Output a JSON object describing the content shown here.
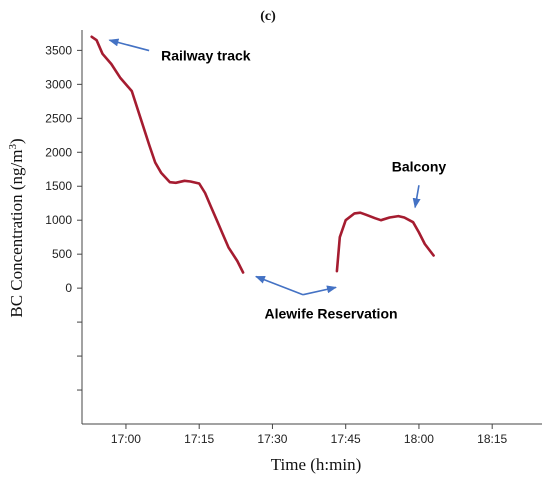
{
  "chart_data": {
    "type": "line",
    "panel_label": "(c)",
    "xlabel": "Time (h:min)",
    "ylabel": "BC Concentration (ng/m³)",
    "ylabel_parts": {
      "main": "BC Concentration (ng/m",
      "sup": "3",
      "end": ")"
    },
    "x_ticks": [
      "17:00",
      "17:15",
      "17:30",
      "17:45",
      "18:00",
      "18:15"
    ],
    "x_tick_values": [
      17.0,
      17.25,
      17.5,
      17.75,
      18.0,
      18.25
    ],
    "xlim": [
      16.85,
      18.42
    ],
    "y_ticks": [
      0,
      500,
      1000,
      1500,
      2000,
      2500,
      3000,
      3500
    ],
    "ylim": [
      -2000,
      3800
    ],
    "series": [
      {
        "color": "#a51c30",
        "x": [
          16.883,
          16.9,
          16.92,
          16.95,
          16.98,
          17.02,
          17.05,
          17.08,
          17.1,
          17.12,
          17.15,
          17.17,
          17.2,
          17.22,
          17.25,
          17.27,
          17.29,
          17.31,
          17.33,
          17.35,
          17.38,
          17.4
        ],
        "y": [
          3700,
          3650,
          3450,
          3300,
          3100,
          2900,
          2500,
          2100,
          1850,
          1700,
          1560,
          1550,
          1580,
          1570,
          1540,
          1400,
          1200,
          1000,
          800,
          600,
          400,
          230
        ]
      },
      {
        "color": "#a51c30",
        "x": [
          17.72,
          17.73,
          17.75,
          17.78,
          17.8,
          17.82,
          17.85,
          17.87,
          17.9,
          17.93,
          17.95,
          17.98,
          18.0,
          18.02,
          18.05
        ],
        "y": [
          250,
          750,
          1000,
          1100,
          1110,
          1080,
          1030,
          1000,
          1040,
          1060,
          1040,
          970,
          820,
          650,
          480
        ]
      }
    ],
    "annotations": [
      {
        "text": "Railway track",
        "x": 17.12,
        "y": 3350,
        "arrow_to": [
          16.93,
          3680
        ]
      },
      {
        "text": "Balcony",
        "x": 18.0,
        "y": 1720,
        "arrow_to": [
          17.98,
          1160
        ]
      },
      {
        "text": "Alewife Reservation",
        "x": 17.7,
        "y": -450,
        "arrow_to": [
          [
            17.43,
            230
          ],
          [
            17.71,
            70
          ]
        ]
      }
    ]
  }
}
